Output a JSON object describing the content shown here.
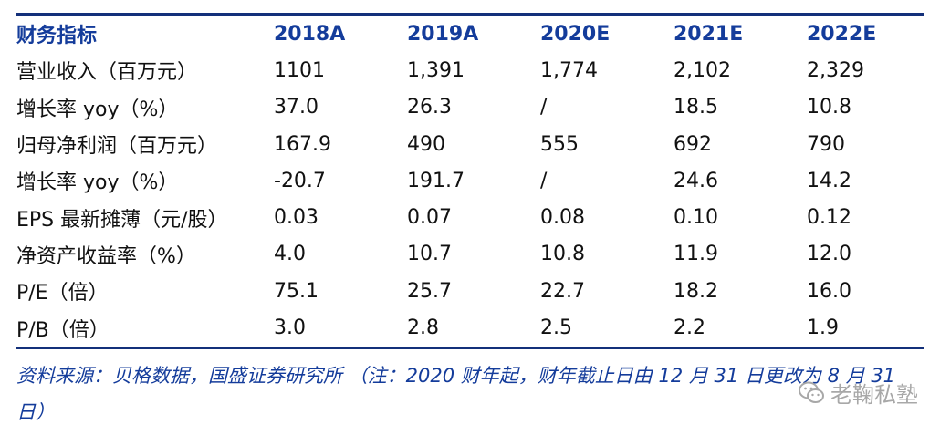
{
  "table": {
    "headers": [
      "财务指标",
      "2018A",
      "2019A",
      "2020E",
      "2021E",
      "2022E"
    ],
    "rows": [
      [
        "营业收入（百万元）",
        "1101",
        "1,391",
        "1,774",
        "2,102",
        "2,329"
      ],
      [
        "增长率 yoy（%）",
        "37.0",
        "26.3",
        "/",
        "18.5",
        "10.8"
      ],
      [
        "归母净利润（百万元）",
        "167.9",
        "490",
        "555",
        "692",
        "790"
      ],
      [
        "增长率 yoy（%）",
        "-20.7",
        "191.7",
        "/",
        "24.6",
        "14.2"
      ],
      [
        "EPS 最新摊薄（元/股）",
        "0.03",
        "0.07",
        "0.08",
        "0.10",
        "0.12"
      ],
      [
        "净资产收益率（%）",
        "4.0",
        "10.7",
        "10.8",
        "11.9",
        "12.0"
      ],
      [
        "P/E（倍）",
        "75.1",
        "25.7",
        "22.7",
        "18.2",
        "16.0"
      ],
      [
        "P/B（倍）",
        "3.0",
        "2.8",
        "2.5",
        "2.2",
        "1.9"
      ]
    ]
  },
  "source_note": "资料来源：贝格数据，国盛证券研究所 （注：2020 财年起，财年截止日由 12 月 31 日更改为 8 月 31 日）",
  "watermark": {
    "text": "老鞠私塾",
    "icon": "wechat-icon"
  },
  "colors": {
    "rule": "#13307a",
    "header_text": "#143c9b",
    "source_text": "#143c9b"
  }
}
